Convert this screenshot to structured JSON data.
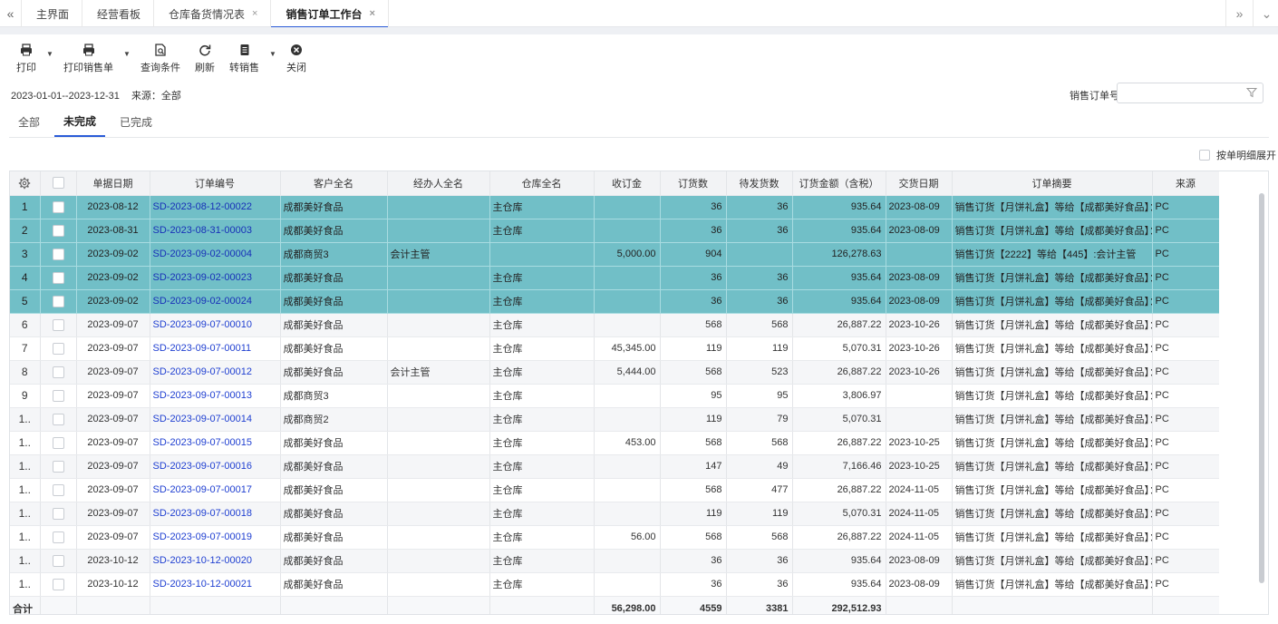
{
  "tabbar": {
    "tabs": [
      {
        "label": "主界面",
        "closable": false,
        "active": false
      },
      {
        "label": "经营看板",
        "closable": false,
        "active": false
      },
      {
        "label": "仓库备货情况表",
        "closable": true,
        "active": false
      },
      {
        "label": "销售订单工作台",
        "closable": true,
        "active": true
      }
    ],
    "close_glyph": "×",
    "left_nav": "«",
    "right_nav": "»",
    "dropdown": "⌄"
  },
  "toolbar": {
    "print": "打印",
    "print_sales": "打印销售单",
    "query": "查询条件",
    "refresh": "刷新",
    "to_sales": "转销售",
    "close": "关闭"
  },
  "filter": {
    "date_range": "2023-01-01--2023-12-31",
    "source": "来源：全部",
    "so_label": "销售订单号",
    "so_value": ""
  },
  "subtabs": [
    "全部",
    "未完成",
    "已完成"
  ],
  "expand_option": "按单明细展开",
  "columns": [
    "单据日期",
    "订单编号",
    "客户全名",
    "经办人全名",
    "仓库全名",
    "收订金",
    "订货数",
    "待发货数",
    "订货金额（含税）",
    "交货日期",
    "订单摘要",
    "来源"
  ],
  "rows": [
    {
      "idx": "1",
      "date": "2023-08-12",
      "order": "SD-2023-08-12-00022",
      "customer": "成都美好食品",
      "handler": "",
      "warehouse": "主仓库",
      "deposit": "",
      "qty": "36",
      "pending": "36",
      "amount": "935.64",
      "delivery": "2023-08-09",
      "summary": "销售订货【月饼礼盒】等给【成都美好食品】：",
      "source": "PC",
      "selected": true
    },
    {
      "idx": "2",
      "date": "2023-08-31",
      "order": "SD-2023-08-31-00003",
      "customer": "成都美好食品",
      "handler": "",
      "warehouse": "主仓库",
      "deposit": "",
      "qty": "36",
      "pending": "36",
      "amount": "935.64",
      "delivery": "2023-08-09",
      "summary": "销售订货【月饼礼盒】等给【成都美好食品】：",
      "source": "PC",
      "selected": true
    },
    {
      "idx": "3",
      "date": "2023-09-02",
      "order": "SD-2023-09-02-00004",
      "customer": "成都商贸3",
      "handler": "会计主管",
      "warehouse": "",
      "deposit": "5,000.00",
      "qty": "904",
      "pending": "",
      "amount": "126,278.63",
      "delivery": "",
      "summary": "销售订货【2222】等给【445】:会计主管",
      "source": "PC",
      "selected": true
    },
    {
      "idx": "4",
      "date": "2023-09-02",
      "order": "SD-2023-09-02-00023",
      "customer": "成都美好食品",
      "handler": "",
      "warehouse": "主仓库",
      "deposit": "",
      "qty": "36",
      "pending": "36",
      "amount": "935.64",
      "delivery": "2023-08-09",
      "summary": "销售订货【月饼礼盒】等给【成都美好食品】：",
      "source": "PC",
      "selected": true
    },
    {
      "idx": "5",
      "date": "2023-09-02",
      "order": "SD-2023-09-02-00024",
      "customer": "成都美好食品",
      "handler": "",
      "warehouse": "主仓库",
      "deposit": "",
      "qty": "36",
      "pending": "36",
      "amount": "935.64",
      "delivery": "2023-08-09",
      "summary": "销售订货【月饼礼盒】等给【成都美好食品】：",
      "source": "PC",
      "selected": true
    },
    {
      "idx": "6",
      "date": "2023-09-07",
      "order": "SD-2023-09-07-00010",
      "customer": "成都美好食品",
      "handler": "",
      "warehouse": "主仓库",
      "deposit": "",
      "qty": "568",
      "pending": "568",
      "amount": "26,887.22",
      "delivery": "2023-10-26",
      "summary": "销售订货【月饼礼盒】等给【成都美好食品】：",
      "source": "PC",
      "selected": false
    },
    {
      "idx": "7",
      "date": "2023-09-07",
      "order": "SD-2023-09-07-00011",
      "customer": "成都美好食品",
      "handler": "",
      "warehouse": "主仓库",
      "deposit": "45,345.00",
      "qty": "119",
      "pending": "119",
      "amount": "5,070.31",
      "delivery": "2023-10-26",
      "summary": "销售订货【月饼礼盒】等给【成都美好食品】：",
      "source": "PC",
      "selected": false
    },
    {
      "idx": "8",
      "date": "2023-09-07",
      "order": "SD-2023-09-07-00012",
      "customer": "成都美好食品",
      "handler": "会计主管",
      "warehouse": "主仓库",
      "deposit": "5,444.00",
      "qty": "568",
      "pending": "523",
      "amount": "26,887.22",
      "delivery": "2023-10-26",
      "summary": "销售订货【月饼礼盒】等给【成都美好食品】：",
      "source": "PC",
      "selected": false
    },
    {
      "idx": "9",
      "date": "2023-09-07",
      "order": "SD-2023-09-07-00013",
      "customer": "成都商贸3",
      "handler": "",
      "warehouse": "主仓库",
      "deposit": "",
      "qty": "95",
      "pending": "95",
      "amount": "3,806.97",
      "delivery": "",
      "summary": "销售订货【月饼礼盒】等给【成都美好食品】：",
      "source": "PC",
      "selected": false
    },
    {
      "idx": "1..",
      "date": "2023-09-07",
      "order": "SD-2023-09-07-00014",
      "customer": "成都商贸2",
      "handler": "",
      "warehouse": "主仓库",
      "deposit": "",
      "qty": "119",
      "pending": "79",
      "amount": "5,070.31",
      "delivery": "",
      "summary": "销售订货【月饼礼盒】等给【成都美好食品】：",
      "source": "PC",
      "selected": false
    },
    {
      "idx": "1..",
      "date": "2023-09-07",
      "order": "SD-2023-09-07-00015",
      "customer": "成都美好食品",
      "handler": "",
      "warehouse": "主仓库",
      "deposit": "453.00",
      "qty": "568",
      "pending": "568",
      "amount": "26,887.22",
      "delivery": "2023-10-25",
      "summary": "销售订货【月饼礼盒】等给【成都美好食品】：",
      "source": "PC",
      "selected": false
    },
    {
      "idx": "1..",
      "date": "2023-09-07",
      "order": "SD-2023-09-07-00016",
      "customer": "成都美好食品",
      "handler": "",
      "warehouse": "主仓库",
      "deposit": "",
      "qty": "147",
      "pending": "49",
      "amount": "7,166.46",
      "delivery": "2023-10-25",
      "summary": "销售订货【月饼礼盒】等给【成都美好食品】：",
      "source": "PC",
      "selected": false
    },
    {
      "idx": "1..",
      "date": "2023-09-07",
      "order": "SD-2023-09-07-00017",
      "customer": "成都美好食品",
      "handler": "",
      "warehouse": "主仓库",
      "deposit": "",
      "qty": "568",
      "pending": "477",
      "amount": "26,887.22",
      "delivery": "2024-11-05",
      "summary": "销售订货【月饼礼盒】等给【成都美好食品】：",
      "source": "PC",
      "selected": false
    },
    {
      "idx": "1..",
      "date": "2023-09-07",
      "order": "SD-2023-09-07-00018",
      "customer": "成都美好食品",
      "handler": "",
      "warehouse": "主仓库",
      "deposit": "",
      "qty": "119",
      "pending": "119",
      "amount": "5,070.31",
      "delivery": "2024-11-05",
      "summary": "销售订货【月饼礼盒】等给【成都美好食品】：",
      "source": "PC",
      "selected": false
    },
    {
      "idx": "1..",
      "date": "2023-09-07",
      "order": "SD-2023-09-07-00019",
      "customer": "成都美好食品",
      "handler": "",
      "warehouse": "主仓库",
      "deposit": "56.00",
      "qty": "568",
      "pending": "568",
      "amount": "26,887.22",
      "delivery": "2024-11-05",
      "summary": "销售订货【月饼礼盒】等给【成都美好食品】：",
      "source": "PC",
      "selected": false
    },
    {
      "idx": "1..",
      "date": "2023-10-12",
      "order": "SD-2023-10-12-00020",
      "customer": "成都美好食品",
      "handler": "",
      "warehouse": "主仓库",
      "deposit": "",
      "qty": "36",
      "pending": "36",
      "amount": "935.64",
      "delivery": "2023-08-09",
      "summary": "销售订货【月饼礼盒】等给【成都美好食品】：",
      "source": "PC",
      "selected": false
    },
    {
      "idx": "1..",
      "date": "2023-10-12",
      "order": "SD-2023-10-12-00021",
      "customer": "成都美好食品",
      "handler": "",
      "warehouse": "主仓库",
      "deposit": "",
      "qty": "36",
      "pending": "36",
      "amount": "935.64",
      "delivery": "2023-08-09",
      "summary": "销售订货【月饼礼盒】等给【成都美好食品】：",
      "source": "PC",
      "selected": false
    }
  ],
  "total": {
    "label": "合计",
    "deposit": "56,298.00",
    "qty": "4559",
    "pending": "3381",
    "amount": "292,512.93"
  }
}
